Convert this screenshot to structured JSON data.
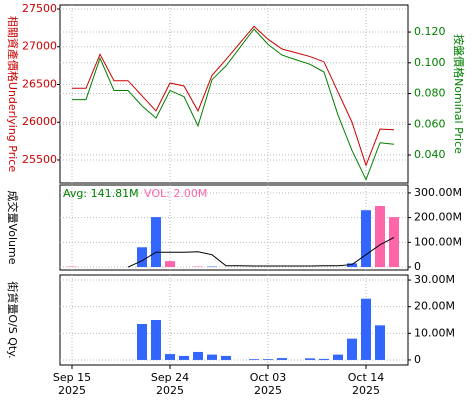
{
  "chart_data": [
    {
      "type": "line",
      "y_title": "相關資產價格Underlying Price",
      "y2_title": "按盤價格Nominal Price",
      "ylim": [
        25195,
        27553
      ],
      "yticks": [
        25500,
        26000,
        26500,
        27000,
        27500
      ],
      "y2lim": [
        0.0218,
        0.1376
      ],
      "y2ticks": [
        {
          "value": 0.04,
          "label": "0.040"
        },
        {
          "value": 0.06,
          "label": "0.060"
        },
        {
          "value": 0.08,
          "label": "0.080"
        },
        {
          "value": 0.1,
          "label": "0.100"
        },
        {
          "value": 0.12,
          "label": "0.120"
        }
      ],
      "grid": true,
      "series": [
        {
          "color": "#cc0000",
          "values": [
            26450,
            26450,
            26900,
            26550,
            26550,
            26350,
            26150,
            26520,
            26480,
            26150,
            26620,
            26830,
            27050,
            27270,
            27100,
            26970,
            26920,
            26870,
            26800,
            26400,
            26000,
            25430,
            25910,
            25900
          ]
        },
        {
          "color": "#008000",
          "axis": "y2",
          "values": [
            0.076,
            0.076,
            0.103,
            0.082,
            0.082,
            0.072,
            0.064,
            0.082,
            0.078,
            0.059,
            0.089,
            0.098,
            0.11,
            0.122,
            0.112,
            0.105,
            0.102,
            0.099,
            0.094,
            0.066,
            0.043,
            0.024,
            0.048,
            0.047
          ]
        }
      ]
    },
    {
      "type": "bar",
      "y_title": "成交量Volume",
      "legend_avg": "Avg: 141.81M",
      "legend_vol": "VOL: 2.00M",
      "avg_color": "#008000",
      "vol_color": "#ff66aa",
      "ylim": [
        -12,
        332
      ],
      "y2ticks": [
        0,
        {
          "value": 100,
          "label": "100.00M"
        },
        {
          "value": 200,
          "label": "200.00M"
        },
        {
          "value": 300,
          "label": "300.00M"
        }
      ],
      "grid": true,
      "values": [
        2,
        0,
        0,
        0,
        0,
        80,
        202,
        24,
        0,
        2,
        2,
        0,
        0,
        0,
        0,
        0,
        0,
        0,
        0,
        0,
        15,
        230,
        247,
        202
      ],
      "bar_colors": [
        "#ff66aa",
        "#3366ff",
        "#3366ff",
        "#3366ff",
        "#3366ff",
        "#3366ff",
        "#3366ff",
        "#ff66aa",
        "#3366ff",
        "#ff66aa",
        "#3366ff",
        "#3366ff",
        "#3366ff",
        "#3366ff",
        "#3366ff",
        "#3366ff",
        "#3366ff",
        "#3366ff",
        "#3366ff",
        "#3366ff",
        "#3366ff",
        "#3366ff",
        "#ff66aa",
        "#ff66aa"
      ],
      "avg_line": {
        "color": "#000000",
        "values": [
          null,
          null,
          null,
          null,
          0,
          25,
          60,
          60,
          60,
          62,
          50,
          5,
          5,
          4,
          4,
          4,
          4,
          4,
          5,
          5,
          10,
          50,
          90,
          120
        ]
      }
    },
    {
      "type": "bar",
      "y_title": "街貨量O/S Qty.",
      "color": "#3366ff",
      "ylim": [
        -1.9,
        31.9
      ],
      "y2ticks": [
        0,
        {
          "value": 10,
          "label": "10.00M"
        },
        {
          "value": 20,
          "label": "20.00M"
        },
        {
          "value": 30,
          "label": "30.00M"
        }
      ],
      "grid": true,
      "values": [
        0,
        0,
        0,
        0,
        0,
        13.5,
        15,
        2.2,
        1.5,
        3,
        2,
        1.5,
        0,
        0.3,
        0.3,
        0.7,
        0,
        0.6,
        0.4,
        2,
        8,
        23,
        13,
        0
      ],
      "categories": [
        "Sep 15\n2025",
        null,
        null,
        null,
        null,
        null,
        null,
        "Sep 24\n2025",
        null,
        null,
        null,
        null,
        null,
        null,
        "Oct 03\n2025",
        null,
        null,
        null,
        null,
        null,
        null,
        "Oct 14\n2025",
        null,
        null
      ]
    }
  ]
}
